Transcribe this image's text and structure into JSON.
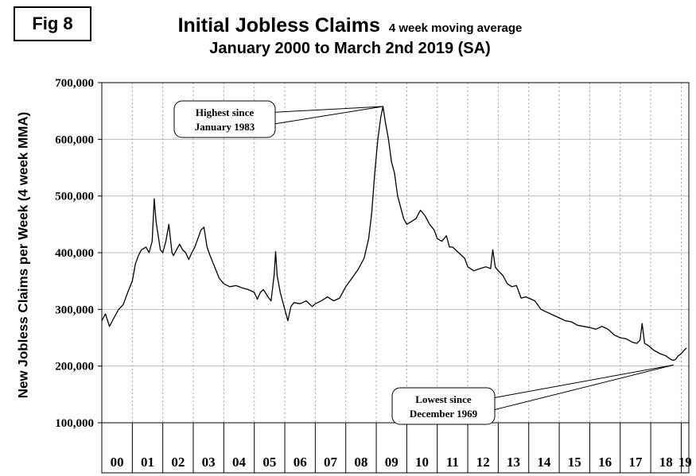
{
  "figure_label": "Fig 8",
  "chart_data": {
    "type": "line",
    "title": "Initial Jobless Claims",
    "title_note": "4 week moving average",
    "subtitle": "January 2000 to March 2nd 2019 (SA)",
    "ylabel": "New Jobless Claims per Week (4 week MMA)",
    "xlabel": "",
    "ylim": [
      100000,
      700000
    ],
    "xlim": [
      2000.0,
      2019.25
    ],
    "y_ticks": [
      100000,
      200000,
      300000,
      400000,
      500000,
      600000,
      700000
    ],
    "y_tick_labels": [
      "100,000",
      "200,000",
      "300,000",
      "400,000",
      "500,000",
      "600,000",
      "700,000"
    ],
    "x_tick_labels": [
      "00",
      "01",
      "02",
      "03",
      "04",
      "05",
      "06",
      "07",
      "08",
      "09",
      "10",
      "11",
      "12",
      "13",
      "14",
      "15",
      "16",
      "17",
      "18",
      "19"
    ],
    "grid": true,
    "line_color": "#000000",
    "series": [
      {
        "x": [
          2000.0,
          2000.12,
          2000.25,
          2000.4,
          2000.55,
          2000.7,
          2000.85,
          2001.0,
          2001.1,
          2001.2,
          2001.3,
          2001.45,
          2001.55,
          2001.65,
          2001.72,
          2001.78,
          2001.85,
          2001.92,
          2002.0,
          2002.1,
          2002.2,
          2002.3,
          2002.35,
          2002.45,
          2002.55,
          2002.65,
          2002.75,
          2002.85,
          2002.95,
          2003.05,
          2003.15,
          2003.25,
          2003.35,
          2003.45,
          2003.55,
          2003.7,
          2003.85,
          2004.0,
          2004.2,
          2004.4,
          2004.6,
          2004.8,
          2005.0,
          2005.1,
          2005.2,
          2005.3,
          2005.45,
          2005.55,
          2005.65,
          2005.7,
          2005.75,
          2005.85,
          2006.0,
          2006.1,
          2006.2,
          2006.3,
          2006.5,
          2006.7,
          2006.9,
          2007.0,
          2007.2,
          2007.4,
          2007.6,
          2007.8,
          2008.0,
          2008.2,
          2008.4,
          2008.6,
          2008.75,
          2008.85,
          2008.95,
          2009.05,
          2009.15,
          2009.22,
          2009.3,
          2009.4,
          2009.5,
          2009.6,
          2009.7,
          2009.8,
          2009.9,
          2010.0,
          2010.15,
          2010.3,
          2010.45,
          2010.6,
          2010.75,
          2010.9,
          2011.0,
          2011.15,
          2011.3,
          2011.4,
          2011.5,
          2011.7,
          2011.9,
          2012.0,
          2012.2,
          2012.4,
          2012.6,
          2012.75,
          2012.82,
          2012.9,
          2013.0,
          2013.15,
          2013.3,
          2013.45,
          2013.6,
          2013.75,
          2013.9,
          2014.0,
          2014.2,
          2014.4,
          2014.6,
          2014.8,
          2015.0,
          2015.2,
          2015.4,
          2015.6,
          2015.8,
          2016.0,
          2016.2,
          2016.4,
          2016.6,
          2016.8,
          2017.0,
          2017.2,
          2017.4,
          2017.55,
          2017.65,
          2017.72,
          2017.8,
          2017.95,
          2018.1,
          2018.3,
          2018.5,
          2018.65,
          2018.75,
          2018.82,
          2018.9,
          2019.0,
          2019.1,
          2019.17
        ],
        "y": [
          280000,
          292000,
          270000,
          285000,
          300000,
          308000,
          330000,
          350000,
          380000,
          395000,
          405000,
          410000,
          400000,
          420000,
          495000,
          455000,
          430000,
          405000,
          400000,
          420000,
          450000,
          400000,
          395000,
          405000,
          415000,
          405000,
          400000,
          388000,
          400000,
          410000,
          425000,
          440000,
          445000,
          410000,
          395000,
          375000,
          355000,
          345000,
          340000,
          342000,
          338000,
          335000,
          330000,
          318000,
          330000,
          335000,
          322000,
          315000,
          360000,
          402000,
          360000,
          330000,
          300000,
          280000,
          305000,
          312000,
          310000,
          315000,
          305000,
          310000,
          315000,
          322000,
          315000,
          320000,
          340000,
          355000,
          370000,
          390000,
          425000,
          470000,
          540000,
          600000,
          640000,
          658000,
          630000,
          600000,
          560000,
          540000,
          500000,
          480000,
          460000,
          450000,
          455000,
          460000,
          475000,
          465000,
          450000,
          440000,
          425000,
          420000,
          430000,
          410000,
          410000,
          400000,
          390000,
          375000,
          368000,
          372000,
          375000,
          372000,
          405000,
          375000,
          368000,
          360000,
          345000,
          340000,
          342000,
          320000,
          322000,
          320000,
          315000,
          300000,
          295000,
          290000,
          285000,
          280000,
          278000,
          272000,
          270000,
          268000,
          265000,
          270000,
          265000,
          255000,
          250000,
          248000,
          242000,
          240000,
          246000,
          275000,
          240000,
          235000,
          228000,
          222000,
          218000,
          212000,
          210000,
          212000,
          218000,
          222000,
          228000,
          232000
        ]
      }
    ],
    "annotations": [
      {
        "lines": [
          "Highest since",
          "January 1983"
        ],
        "target_x": 2009.22,
        "target_y": 658000
      },
      {
        "lines": [
          "Lowest since",
          "December 1969"
        ],
        "target_x": 2018.75,
        "target_y": 202000
      }
    ]
  }
}
